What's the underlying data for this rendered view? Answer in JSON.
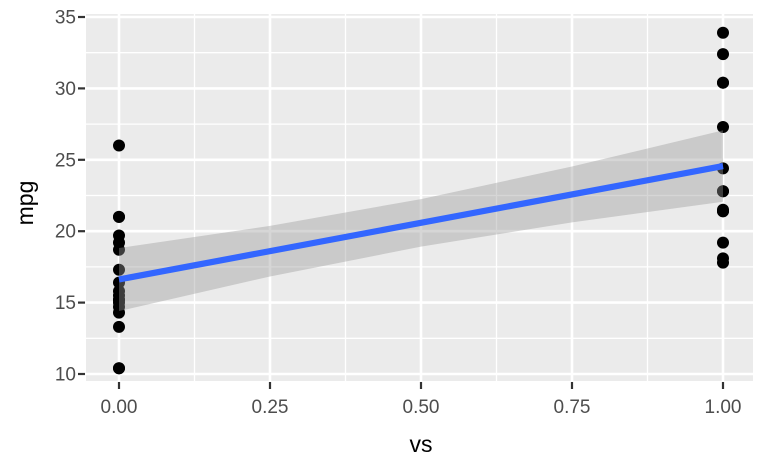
{
  "chart_data": {
    "type": "scatter",
    "title": "",
    "xlabel": "vs",
    "ylabel": "mpg",
    "legend": "none",
    "grid": true,
    "panel_style": "ggplot2-grey",
    "x_axis": {
      "tick_values": [
        0,
        0.25,
        0.5,
        0.75,
        1
      ],
      "tick_labels": [
        "0.00",
        "0.25",
        "0.50",
        "0.75",
        "1.00"
      ],
      "minor_values": [
        0.125,
        0.375,
        0.625,
        0.875
      ],
      "lim": [
        -0.055,
        1.05
      ]
    },
    "y_axis": {
      "tick_values": [
        10,
        15,
        20,
        25,
        30,
        35
      ],
      "tick_labels": [
        "10",
        "15",
        "20",
        "25",
        "30",
        "35"
      ],
      "minor_values": [
        12.5,
        17.5,
        22.5,
        27.5,
        32.5
      ],
      "lim": [
        9.5,
        35.3
      ]
    },
    "series": [
      {
        "name": "points",
        "type": "scatter",
        "points": [
          [
            0,
            21.0
          ],
          [
            0,
            21.0
          ],
          [
            0,
            18.7
          ],
          [
            0,
            14.3
          ],
          [
            0,
            16.4
          ],
          [
            0,
            17.3
          ],
          [
            0,
            15.2
          ],
          [
            0,
            10.4
          ],
          [
            0,
            10.4
          ],
          [
            0,
            14.7
          ],
          [
            0,
            15.5
          ],
          [
            0,
            15.2
          ],
          [
            0,
            13.3
          ],
          [
            0,
            19.2
          ],
          [
            0,
            26.0
          ],
          [
            0,
            15.8
          ],
          [
            0,
            19.7
          ],
          [
            0,
            15.0
          ],
          [
            1,
            22.8
          ],
          [
            1,
            21.4
          ],
          [
            1,
            18.1
          ],
          [
            1,
            24.4
          ],
          [
            1,
            22.8
          ],
          [
            1,
            19.2
          ],
          [
            1,
            17.8
          ],
          [
            1,
            32.4
          ],
          [
            1,
            30.4
          ],
          [
            1,
            33.9
          ],
          [
            1,
            21.5
          ],
          [
            1,
            27.3
          ],
          [
            1,
            30.4
          ],
          [
            1,
            21.4
          ]
        ]
      },
      {
        "name": "lm-fit-line",
        "type": "line",
        "x": [
          0,
          1
        ],
        "y": [
          16.62,
          24.56
        ]
      },
      {
        "name": "confidence-band",
        "type": "area",
        "x": [
          0,
          0.25,
          0.5,
          0.75,
          1
        ],
        "upper": [
          18.82,
          20.37,
          22.25,
          24.53,
          27.06
        ],
        "lower": [
          14.41,
          16.83,
          18.92,
          20.62,
          22.06
        ]
      }
    ],
    "colors": {
      "figure_bg": "#FFFFFF",
      "panel_bg": "#EBEBEB",
      "grid_major": "#FFFFFF",
      "grid_minor": "#FFFFFF",
      "point": "#000000",
      "smooth_line": "#3366FF",
      "ribbon_fill": "#999999",
      "ribbon_alpha": 0.4,
      "tick_mark": "#333333",
      "tick_label": "#4D4D4D",
      "axis_title": "#000000"
    }
  }
}
